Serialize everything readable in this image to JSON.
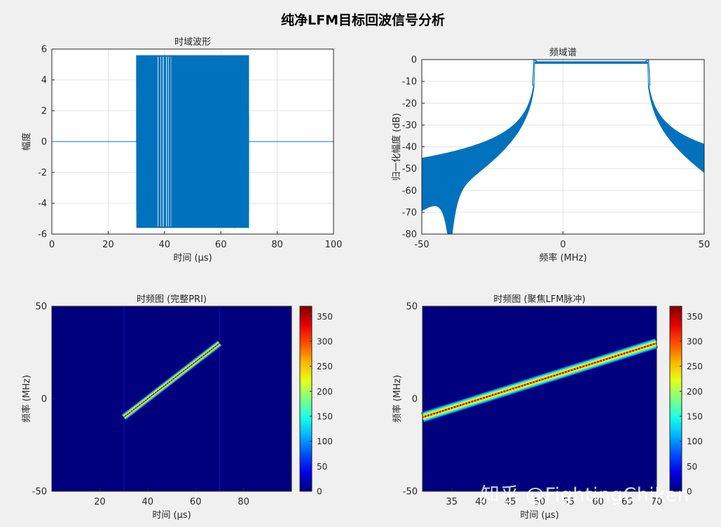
{
  "figure_title": "纯净LFM目标回波信号分析",
  "watermark": "知乎 @FightingChiken",
  "colors": {
    "line": "#0072BD",
    "background": "#f0f0f0",
    "axes": "#ffffff",
    "grid": "#e3e3e3"
  },
  "chart_data": [
    {
      "type": "line",
      "title": "时域波形",
      "xlabel": "时间 (μs)",
      "ylabel": "幅度",
      "xlim": [
        0,
        100
      ],
      "ylim": [
        -6,
        6
      ],
      "xticks": [
        0,
        20,
        40,
        60,
        80,
        100
      ],
      "yticks": [
        6,
        4,
        2,
        0,
        -2,
        -4,
        -6
      ],
      "grid": true,
      "series": [
        {
          "pulse_start": 30,
          "pulse_end": 70,
          "amplitude": 5.6,
          "baseline": 0
        }
      ]
    },
    {
      "type": "area",
      "title": "频域谱",
      "xlabel": "频率 (MHz)",
      "ylabel": "归一化幅度 (dB)",
      "xlim": [
        -50,
        50
      ],
      "ylim": [
        -80,
        0
      ],
      "xticks": [
        -50,
        0,
        50
      ],
      "yticks": [
        0,
        -10,
        -20,
        -30,
        -40,
        -50,
        -60,
        -70,
        -80
      ],
      "grid": true,
      "series": [
        {
          "band_start": -10,
          "band_end": 30,
          "passband_level": -1,
          "null_at": -40,
          "edge_level_left": -39,
          "edge_level_right": -39,
          "envelope_low_right": -51
        }
      ]
    },
    {
      "type": "heatmap",
      "title": "时频图 (完整PRI)",
      "xlabel": "时间 (μs)",
      "ylabel": "频率 (MHz)",
      "xlim": [
        0,
        100
      ],
      "ylim": [
        -50,
        50
      ],
      "xticks": [
        20,
        40,
        60,
        80
      ],
      "yticks": [
        50,
        0,
        -50
      ],
      "colorbar": {
        "range": [
          0,
          370
        ],
        "ticks": [
          350,
          300,
          250,
          200,
          150,
          100,
          50,
          0
        ]
      },
      "series": [
        {
          "t_start": 30,
          "f_start": -10,
          "t_end": 70,
          "f_end": 30,
          "peak": 370
        }
      ]
    },
    {
      "type": "heatmap",
      "title": "时频图 (聚焦LFM脉冲)",
      "xlabel": "时间 (μs)",
      "ylabel": "频率 (MHz)",
      "xlim": [
        30,
        70
      ],
      "ylim": [
        -50,
        50
      ],
      "xticks": [
        35,
        40,
        45,
        50,
        55,
        60,
        65,
        70
      ],
      "yticks": [
        50,
        0,
        -50
      ],
      "colorbar": {
        "range": [
          0,
          370
        ],
        "ticks": [
          350,
          300,
          250,
          200,
          150,
          100,
          50,
          0
        ]
      },
      "series": [
        {
          "t_start": 30,
          "f_start": -10,
          "t_end": 70,
          "f_end": 30,
          "peak": 370
        }
      ]
    }
  ]
}
